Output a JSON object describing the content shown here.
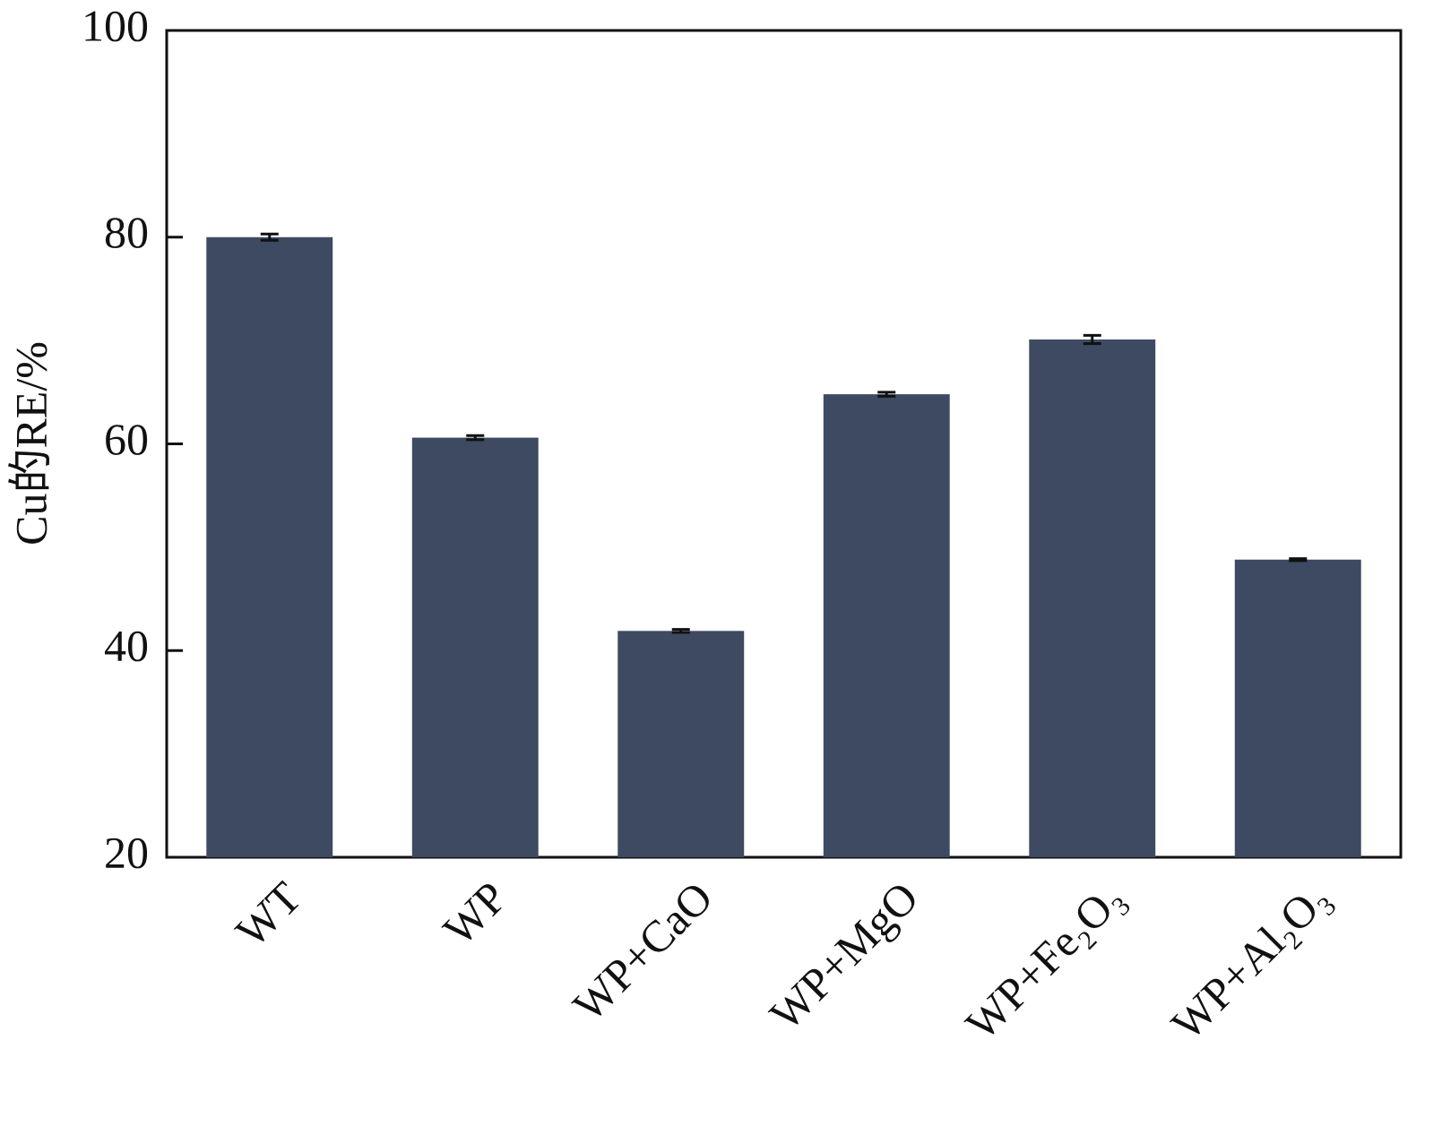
{
  "chart_data": {
    "type": "bar",
    "y_label": "Cu的RE/%",
    "categories": [
      "WT",
      "WP",
      "WP+CaO",
      "WP+MgO",
      "WP+Fe₂O₃",
      "WP+Al₂O₃"
    ],
    "values": [
      80.0,
      60.6,
      41.9,
      64.8,
      70.1,
      48.8
    ],
    "errors": [
      0.3,
      0.2,
      0.15,
      0.2,
      0.4,
      0.1
    ],
    "color": "#3e4a62",
    "ylim": [
      20,
      100
    ],
    "yticks": [
      20,
      40,
      60,
      80,
      100
    ],
    "grid": false
  }
}
